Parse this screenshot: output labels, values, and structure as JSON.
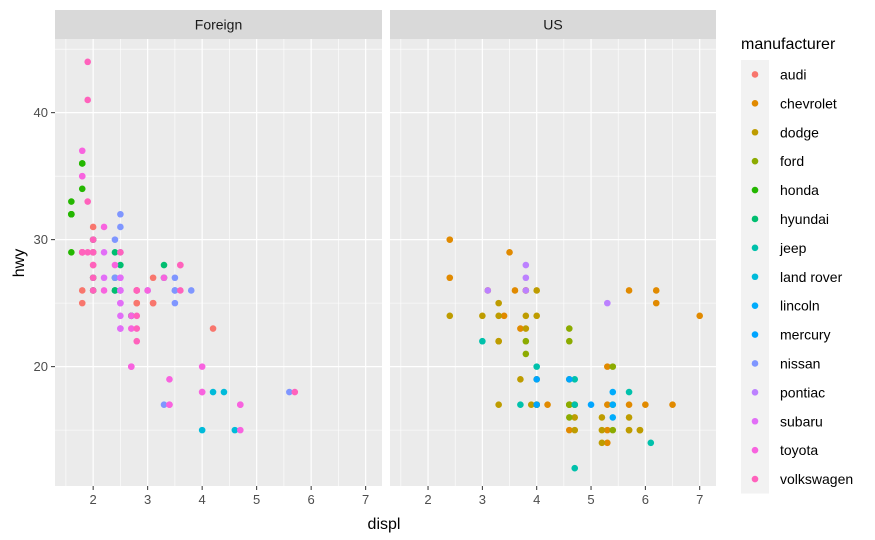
{
  "chart_data": {
    "type": "scatter",
    "xlabel": "displ",
    "ylabel": "hwy",
    "facets": [
      "Foreign",
      "US"
    ],
    "xlim": [
      1.3,
      7.3
    ],
    "ylim": [
      10.6,
      45.8
    ],
    "x_ticks": [
      2,
      3,
      4,
      5,
      6,
      7
    ],
    "y_ticks": [
      20,
      30,
      40
    ],
    "grid": true,
    "legend": {
      "title": "manufacturer",
      "position": "right",
      "entries": [
        {
          "name": "audi",
          "color": "#F8766D"
        },
        {
          "name": "chevrolet",
          "color": "#E18A00"
        },
        {
          "name": "dodge",
          "color": "#BE9C00"
        },
        {
          "name": "ford",
          "color": "#8CAB00"
        },
        {
          "name": "honda",
          "color": "#24B700"
        },
        {
          "name": "hyundai",
          "color": "#00BE70"
        },
        {
          "name": "jeep",
          "color": "#00C1AB"
        },
        {
          "name": "land rover",
          "color": "#00BBDA"
        },
        {
          "name": "lincoln",
          "color": "#00ACFC"
        },
        {
          "name": "mercury",
          "color": "#00A5FF"
        },
        {
          "name": "nissan",
          "color": "#7F96FF"
        },
        {
          "name": "pontiac",
          "color": "#BC81FF"
        },
        {
          "name": "subaru",
          "color": "#E26EF7"
        },
        {
          "name": "toyota",
          "color": "#F863DF"
        },
        {
          "name": "volkswagen",
          "color": "#FF62BC"
        }
      ]
    },
    "panels": [
      {
        "facet": "Foreign",
        "series": [
          {
            "name": "audi",
            "points": [
              [
                1.8,
                29
              ],
              [
                1.8,
                29
              ],
              [
                2.0,
                31
              ],
              [
                2.0,
                30
              ],
              [
                2.8,
                26
              ],
              [
                2.8,
                26
              ],
              [
                3.1,
                27
              ],
              [
                1.8,
                26
              ],
              [
                1.8,
                25
              ],
              [
                2.0,
                28
              ],
              [
                2.0,
                27
              ],
              [
                2.8,
                25
              ],
              [
                2.8,
                25
              ],
              [
                3.1,
                25
              ],
              [
                3.1,
                25
              ],
              [
                4.2,
                23
              ],
              [
                2.0,
                26
              ]
            ]
          },
          {
            "name": "honda",
            "points": [
              [
                1.6,
                33
              ],
              [
                1.6,
                32
              ],
              [
                1.6,
                32
              ],
              [
                1.6,
                29
              ],
              [
                1.6,
                32
              ],
              [
                1.8,
                34
              ],
              [
                1.8,
                36
              ],
              [
                1.8,
                36
              ],
              [
                2.0,
                29
              ]
            ]
          },
          {
            "name": "hyundai",
            "points": [
              [
                2.4,
                26
              ],
              [
                2.4,
                26
              ],
              [
                2.4,
                27
              ],
              [
                2.5,
                28
              ],
              [
                2.7,
                24
              ],
              [
                2.7,
                24
              ],
              [
                2.0,
                27
              ],
              [
                2.0,
                30
              ],
              [
                2.0,
                26
              ],
              [
                2.4,
                29
              ],
              [
                3.3,
                28
              ],
              [
                3.3,
                27
              ]
            ]
          },
          {
            "name": "land rover",
            "points": [
              [
                4.0,
                15
              ],
              [
                4.2,
                18
              ],
              [
                4.4,
                18
              ],
              [
                4.6,
                15
              ]
            ]
          },
          {
            "name": "nissan",
            "points": [
              [
                2.4,
                27
              ],
              [
                2.5,
                31
              ],
              [
                2.5,
                32
              ],
              [
                3.3,
                17
              ],
              [
                3.5,
                27
              ],
              [
                3.5,
                26
              ],
              [
                3.8,
                26
              ],
              [
                3.5,
                25
              ],
              [
                3.0,
                26
              ],
              [
                5.6,
                18
              ],
              [
                2.4,
                30
              ],
              [
                3.5,
                26
              ],
              [
                2.5,
                29
              ]
            ]
          },
          {
            "name": "subaru",
            "points": [
              [
                2.5,
                26
              ],
              [
                2.5,
                25
              ],
              [
                2.5,
                26
              ],
              [
                2.5,
                24
              ],
              [
                2.5,
                27
              ],
              [
                2.5,
                23
              ],
              [
                2.5,
                23
              ],
              [
                2.5,
                26
              ],
              [
                2.2,
                27
              ],
              [
                2.2,
                29
              ],
              [
                2.5,
                25
              ],
              [
                2.5,
                27
              ]
            ]
          },
          {
            "name": "toyota",
            "points": [
              [
                2.7,
                20
              ],
              [
                2.7,
                24
              ],
              [
                3.4,
                19
              ],
              [
                3.4,
                17
              ],
              [
                4.0,
                20
              ],
              [
                4.7,
                17
              ],
              [
                4.7,
                15
              ],
              [
                2.2,
                26
              ],
              [
                2.4,
                28
              ],
              [
                2.2,
                31
              ],
              [
                3.0,
                26
              ],
              [
                3.3,
                27
              ],
              [
                1.8,
                35
              ],
              [
                1.8,
                37
              ],
              [
                1.8,
                35
              ],
              [
                1.8,
                29
              ],
              [
                4.0,
                18
              ],
              [
                2.7,
                20
              ],
              [
                3.4,
                17
              ],
              [
                4.0,
                18
              ],
              [
                4.7,
                17
              ],
              [
                2.7,
                23
              ]
            ]
          },
          {
            "name": "volkswagen",
            "points": [
              [
                1.8,
                29
              ],
              [
                2.0,
                29
              ],
              [
                2.8,
                23
              ],
              [
                1.9,
                44
              ],
              [
                1.9,
                41
              ],
              [
                2.0,
                29
              ],
              [
                2.5,
                29
              ],
              [
                1.8,
                29
              ],
              [
                1.9,
                33
              ],
              [
                2.0,
                28
              ],
              [
                2.8,
                26
              ],
              [
                3.6,
                28
              ],
              [
                2.0,
                26
              ],
              [
                2.8,
                24
              ],
              [
                3.6,
                26
              ],
              [
                5.7,
                18
              ],
              [
                1.8,
                29
              ],
              [
                2.0,
                30
              ],
              [
                2.8,
                22
              ],
              [
                1.9,
                29
              ],
              [
                2.8,
                26
              ],
              [
                3.6,
                28
              ],
              [
                2.0,
                27
              ]
            ]
          }
        ]
      },
      {
        "facet": "US",
        "series": [
          {
            "name": "chevrolet",
            "points": [
              [
                5.3,
                20
              ],
              [
                5.3,
                15
              ],
              [
                5.3,
                17
              ],
              [
                5.7,
                17
              ],
              [
                6.0,
                17
              ],
              [
                5.7,
                26
              ],
              [
                6.2,
                26
              ],
              [
                6.2,
                25
              ],
              [
                7.0,
                24
              ],
              [
                5.3,
                14
              ],
              [
                5.7,
                15
              ],
              [
                6.5,
                17
              ],
              [
                2.4,
                30
              ],
              [
                2.4,
                27
              ],
              [
                3.1,
                26
              ],
              [
                3.5,
                29
              ],
              [
                3.6,
                26
              ],
              [
                3.4,
                24
              ],
              [
                3.8,
                26
              ],
              [
                3.8,
                26
              ],
              [
                3.7,
                23
              ],
              [
                4.2,
                17
              ],
              [
                4.6,
                15
              ]
            ]
          },
          {
            "name": "dodge",
            "points": [
              [
                2.4,
                24
              ],
              [
                3.0,
                24
              ],
              [
                3.3,
                22
              ],
              [
                3.3,
                24
              ],
              [
                3.8,
                24
              ],
              [
                4.0,
                24
              ],
              [
                3.3,
                17
              ],
              [
                3.7,
                19
              ],
              [
                3.9,
                17
              ],
              [
                4.7,
                17
              ],
              [
                4.7,
                17
              ],
              [
                5.2,
                16
              ],
              [
                5.2,
                15
              ],
              [
                5.7,
                16
              ],
              [
                5.9,
                15
              ],
              [
                4.7,
                15
              ],
              [
                4.7,
                16
              ],
              [
                5.2,
                14
              ],
              [
                5.7,
                15
              ],
              [
                5.9,
                15
              ],
              [
                3.8,
                23
              ],
              [
                3.3,
                22
              ],
              [
                3.3,
                25
              ],
              [
                4.0,
                26
              ]
            ]
          },
          {
            "name": "ford",
            "points": [
              [
                4.6,
                17
              ],
              [
                5.4,
                15
              ],
              [
                4.0,
                17
              ],
              [
                4.0,
                17
              ],
              [
                4.0,
                19
              ],
              [
                4.6,
                16
              ],
              [
                4.6,
                17
              ],
              [
                4.6,
                22
              ],
              [
                5.4,
                17
              ],
              [
                5.4,
                20
              ],
              [
                3.8,
                22
              ],
              [
                3.8,
                21
              ],
              [
                4.0,
                17
              ],
              [
                4.6,
                23
              ],
              [
                4.6,
                19
              ],
              [
                4.6,
                17
              ]
            ]
          },
          {
            "name": "jeep",
            "points": [
              [
                3.0,
                22
              ],
              [
                3.7,
                17
              ],
              [
                4.0,
                20
              ],
              [
                4.7,
                17
              ],
              [
                4.7,
                12
              ],
              [
                4.7,
                19
              ],
              [
                5.7,
                18
              ],
              [
                6.1,
                14
              ]
            ]
          },
          {
            "name": "lincoln",
            "points": [
              [
                5.4,
                16
              ],
              [
                5.4,
                17
              ],
              [
                5.4,
                18
              ]
            ]
          },
          {
            "name": "mercury",
            "points": [
              [
                4.0,
                19
              ],
              [
                4.0,
                17
              ],
              [
                4.6,
                19
              ],
              [
                5.0,
                17
              ]
            ]
          },
          {
            "name": "pontiac",
            "points": [
              [
                3.1,
                26
              ],
              [
                3.8,
                27
              ],
              [
                3.8,
                28
              ],
              [
                3.8,
                26
              ],
              [
                5.3,
                25
              ]
            ]
          }
        ]
      }
    ]
  }
}
